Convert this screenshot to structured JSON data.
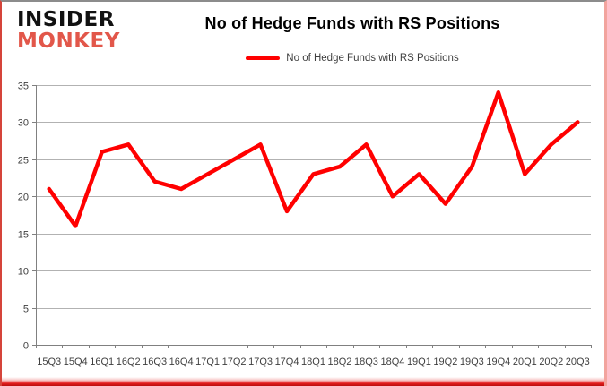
{
  "logo": {
    "line1": "INSIDER",
    "line2": "MONKEY"
  },
  "header": {
    "title": "No of Hedge Funds with RS Positions"
  },
  "legend": {
    "label": "No of Hedge Funds with RS Positions"
  },
  "colors": {
    "series_line": "#ff0000",
    "brand_red": "#e2574a",
    "gridline": "#b2b2b2",
    "axis": "#808080",
    "tick_text": "#3f3f3f"
  },
  "chart_data": {
    "type": "line",
    "title": "No of Hedge Funds with RS Positions",
    "categories": [
      "15Q3",
      "15Q4",
      "16Q1",
      "16Q2",
      "16Q3",
      "16Q4",
      "17Q1",
      "17Q2",
      "17Q3",
      "17Q4",
      "18Q1",
      "18Q2",
      "18Q3",
      "18Q4",
      "19Q1",
      "19Q2",
      "19Q3",
      "19Q4",
      "20Q1",
      "20Q2",
      "20Q3"
    ],
    "series": [
      {
        "name": "No of Hedge Funds with RS Positions",
        "color": "#ff0000",
        "values": [
          21,
          16,
          26,
          27,
          22,
          21,
          23,
          25,
          27,
          18,
          23,
          24,
          27,
          20,
          23,
          19,
          24,
          34,
          23,
          27,
          30
        ]
      }
    ],
    "xlabel": "",
    "ylabel": "",
    "ylim": [
      0,
      35
    ],
    "y_ticks": [
      0,
      5,
      10,
      15,
      20,
      25,
      30,
      35
    ],
    "grid": true,
    "legend_position": "top-center"
  }
}
